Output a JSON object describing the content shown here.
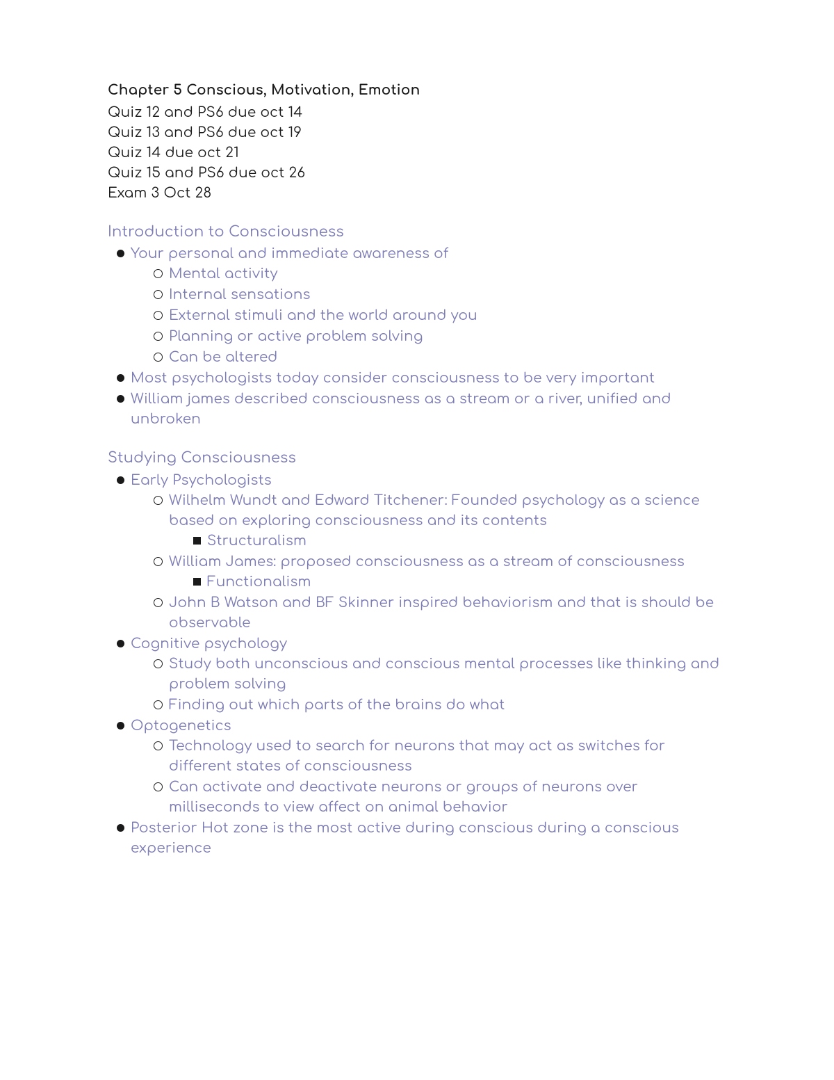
{
  "title": "Chapter 5 Conscious, Motivation, Emotion",
  "colors": {
    "heading_text": "#1a1a1a",
    "body_text": "#1a1a1a",
    "notes_text": "#7b7bb5",
    "background": "#ffffff",
    "bullet_fill": "#1a1a1a"
  },
  "typography": {
    "title_fontsize_pt": 15,
    "body_fontsize_pt": 15,
    "title_weight": 700,
    "body_weight": 400,
    "font_family": "Comfortaa-like rounded sans"
  },
  "due_lines": [
    "Quiz 12 and PS6 due oct 14",
    "Quiz 13 and PS6 due oct 19",
    "Quiz 14 due oct 21",
    "Quiz 15 and PS6 due oct 26",
    "Exam 3 Oct 28"
  ],
  "sections": [
    {
      "heading": "Introduction to Consciousness",
      "items": [
        {
          "text": "Your personal and immediate awareness of",
          "children": [
            {
              "text": "Mental activity"
            },
            {
              "text": "Internal sensations"
            },
            {
              "text": "External stimuli and the world around you"
            },
            {
              "text": "Planning or active problem solving"
            },
            {
              "text": "Can be altered"
            }
          ]
        },
        {
          "text": "Most psychologists today consider consciousness to be very important"
        },
        {
          "text": "William james described consciousness as a stream or a river, unified and unbroken"
        }
      ]
    },
    {
      "heading": "Studying Consciousness",
      "items": [
        {
          "text": "Early Psychologists",
          "children": [
            {
              "text": "Wilhelm Wundt and Edward Titchener: Founded psychology as a science based on exploring consciousness and its contents",
              "children": [
                {
                  "text": "Structuralism"
                }
              ]
            },
            {
              "text": "William James: proposed consciousness as a stream of consciousness",
              "children": [
                {
                  "text": "Functionalism"
                }
              ]
            },
            {
              "text": "John B Watson and BF Skinner inspired behaviorism and that is should be observable"
            }
          ]
        },
        {
          "text": "Cognitive psychology",
          "children": [
            {
              "text": "Study both unconscious and conscious mental processes like thinking and problem solving"
            },
            {
              "text": "Finding out which parts of the brains do what"
            }
          ]
        },
        {
          "text": "Optogenetics",
          "children": [
            {
              "text": "Technology used to search for neurons that may act as switches for different states of consciousness"
            },
            {
              "text": "Can activate and deactivate neurons or groups of neurons over milliseconds to view affect on animal behavior"
            }
          ]
        },
        {
          "text": "Posterior Hot zone is the most active during conscious during a conscious experience"
        }
      ]
    }
  ]
}
